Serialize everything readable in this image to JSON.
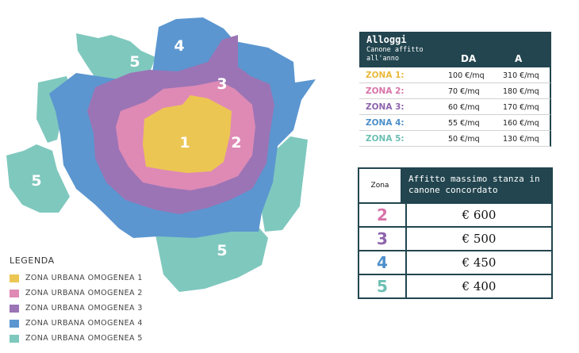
{
  "colors": {
    "zone1": "#ecc653",
    "zone2": "#de8ab5",
    "zone3": "#9b74b5",
    "zone4": "#5b96d0",
    "zone5": "#7fc8be",
    "header": "#22454f"
  },
  "map": {
    "labels": [
      "1",
      "2",
      "3",
      "4",
      "5",
      "5",
      "5"
    ]
  },
  "legend": {
    "title": "LEGENDA",
    "items": [
      {
        "label": "ZONA URBANA OMOGENEA 1",
        "color": "#ecc653"
      },
      {
        "label": "ZONA URBANA OMOGENEA 2",
        "color": "#de8ab5"
      },
      {
        "label": "ZONA URBANA OMOGENEA 3",
        "color": "#9b74b5"
      },
      {
        "label": "ZONA URBANA OMOGENEA 4",
        "color": "#5b96d0"
      },
      {
        "label": "ZONA URBANA OMOGENEA 5",
        "color": "#7fc8be"
      }
    ]
  },
  "housing_table": {
    "title": "Alloggi",
    "subtitle": "Canone affitto all'anno",
    "col_from": "DA",
    "col_to": "A",
    "rows": [
      {
        "zone": "ZONA 1:",
        "from": "100 €/mq",
        "to": "310 €/mq",
        "color": "#e8b93c"
      },
      {
        "zone": "ZONA 2:",
        "from": "70 €/mq",
        "to": "180 €/mq",
        "color": "#d873a8"
      },
      {
        "zone": "ZONA 3:",
        "from": "60 €/mq",
        "to": "170 €/mq",
        "color": "#8e64ad"
      },
      {
        "zone": "ZONA 4:",
        "from": "55 €/mq",
        "to": "160 €/mq",
        "color": "#4d8fca"
      },
      {
        "zone": "ZONA 5:",
        "from": "50 €/mq",
        "to": "130 €/mq",
        "color": "#6cbfb3"
      }
    ]
  },
  "room_table": {
    "zone_header": "Zona",
    "title": "Affitto massimo stanza in canone concordato",
    "rows": [
      {
        "zone": "2",
        "value": "€ 600",
        "color": "#d873a8"
      },
      {
        "zone": "3",
        "value": "€ 500",
        "color": "#8e64ad"
      },
      {
        "zone": "4",
        "value": "€ 450",
        "color": "#4d8fca"
      },
      {
        "zone": "5",
        "value": "€ 400",
        "color": "#6cbfb3"
      }
    ]
  }
}
